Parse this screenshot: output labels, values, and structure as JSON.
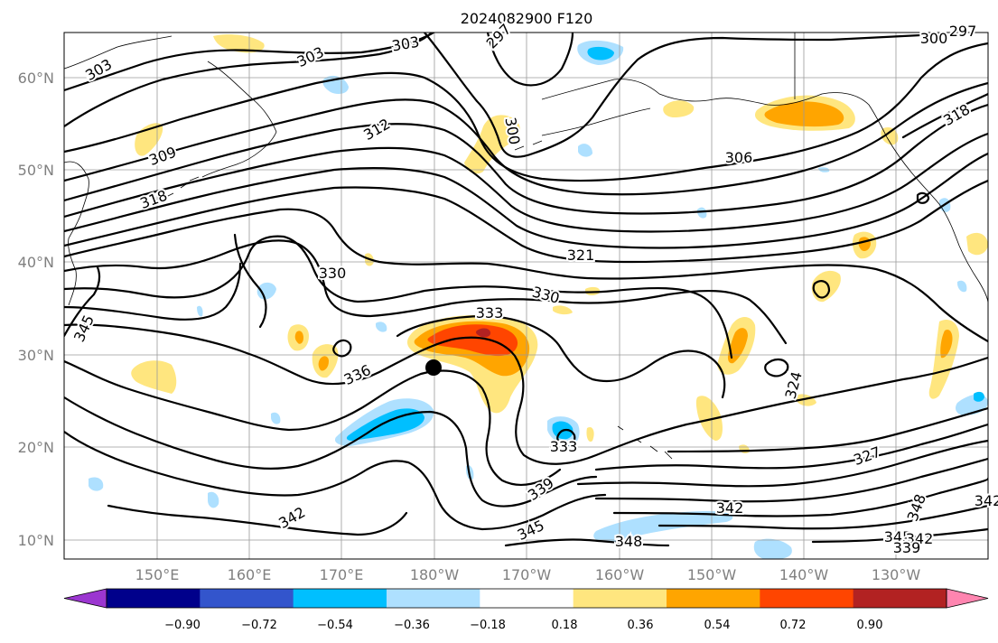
{
  "title": "2024082900 F120",
  "lat_labels": [
    "60°N",
    "50°N",
    "40°N",
    "30°N",
    "20°N",
    "10°N"
  ],
  "lon_labels": [
    "150°E",
    "160°E",
    "170°E",
    "180°W",
    "170°W",
    "160°W",
    "150°W",
    "140°W",
    "130°W"
  ],
  "colorbar": {
    "ticks": [
      "−0.90",
      "−0.72",
      "−0.54",
      "−0.36",
      "−0.18",
      "0.18",
      "0.36",
      "0.54",
      "0.72",
      "0.90"
    ],
    "colors": [
      "#9b36d0",
      "#00008b",
      "#3355cc",
      "#00bfff",
      "#aee0ff",
      "#ffffff",
      "#ffe67f",
      "#ffa500",
      "#ff4500",
      "#b22222",
      "#ff85b0"
    ]
  },
  "contour_labels": [
    {
      "text": "303",
      "id": "c303a"
    },
    {
      "text": "303",
      "id": "c303b"
    },
    {
      "text": "303",
      "id": "c303c"
    },
    {
      "text": "297",
      "id": "c297a"
    },
    {
      "text": "300",
      "id": "c300a"
    },
    {
      "text": "297",
      "id": "c297b"
    },
    {
      "text": "300",
      "id": "c300b"
    },
    {
      "text": "309",
      "id": "c309"
    },
    {
      "text": "312",
      "id": "c312"
    },
    {
      "text": "318",
      "id": "c318a"
    },
    {
      "text": "318",
      "id": "c318b"
    },
    {
      "text": "306",
      "id": "c306"
    },
    {
      "text": "321",
      "id": "c321"
    },
    {
      "text": "330",
      "id": "c330a"
    },
    {
      "text": "330",
      "id": "c330b"
    },
    {
      "text": "333",
      "id": "c333a"
    },
    {
      "text": "336",
      "id": "c336"
    },
    {
      "text": "345",
      "id": "c345a"
    },
    {
      "text": "324",
      "id": "c324"
    },
    {
      "text": "333",
      "id": "c333b"
    },
    {
      "text": "327",
      "id": "c327"
    },
    {
      "text": "339",
      "id": "c339a"
    },
    {
      "text": "342",
      "id": "c342a"
    },
    {
      "text": "345",
      "id": "c345b"
    },
    {
      "text": "342",
      "id": "c342b"
    },
    {
      "text": "348",
      "id": "c348a"
    },
    {
      "text": "348",
      "id": "c348b"
    },
    {
      "text": "345",
      "id": "c345c"
    },
    {
      "text": "342",
      "id": "c342c"
    },
    {
      "text": "339",
      "id": "c339b"
    },
    {
      "text": "342",
      "id": "c342d"
    }
  ],
  "marker": "storm-center-dot"
}
